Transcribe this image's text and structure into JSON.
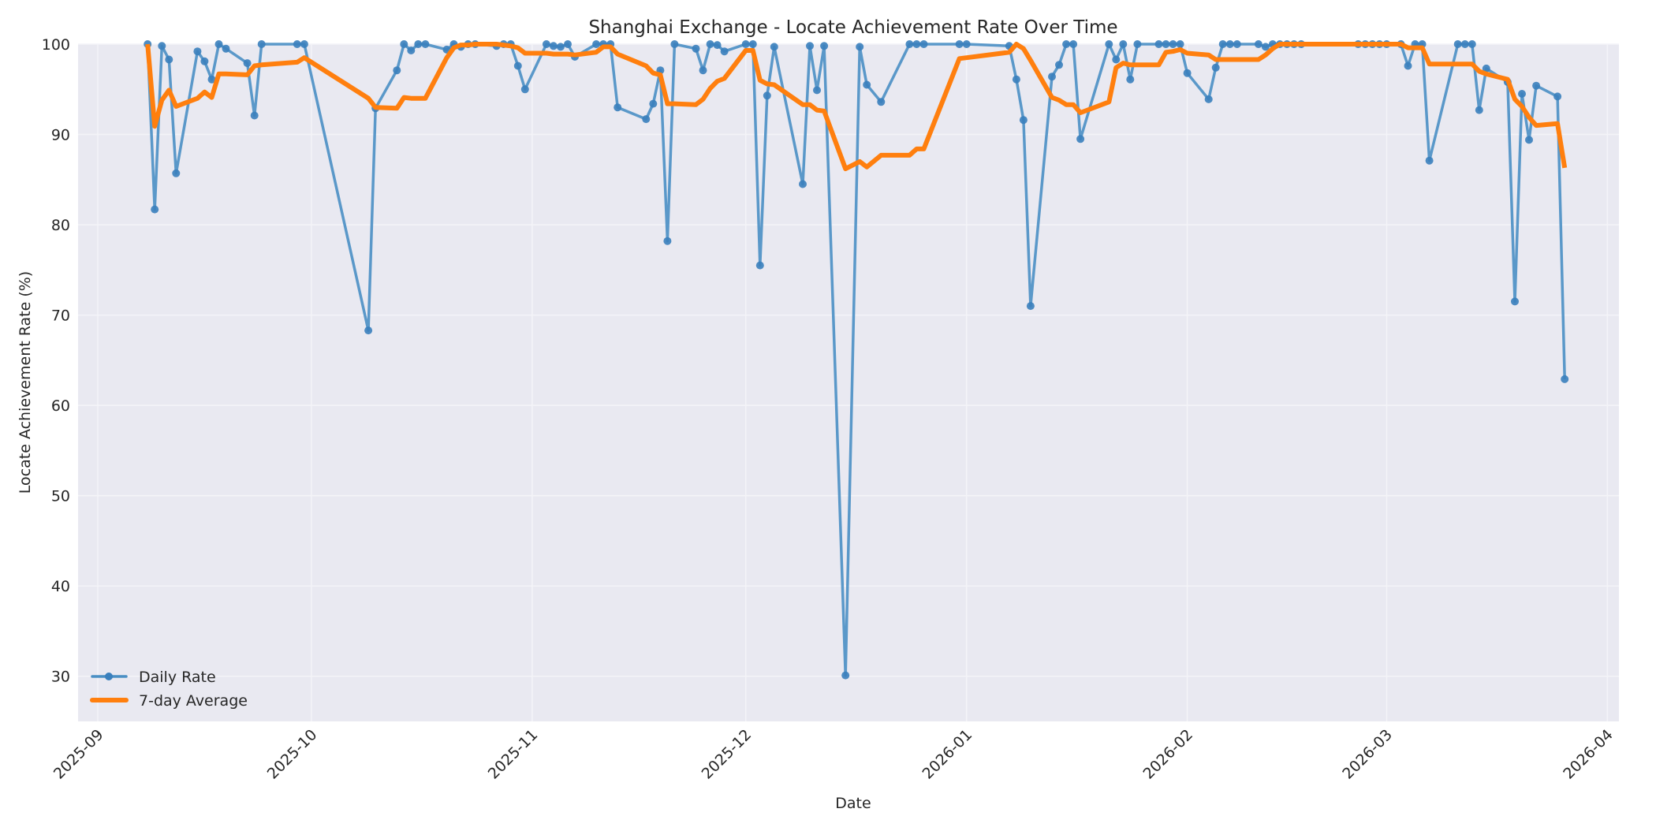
{
  "chart_data": {
    "type": "line",
    "title": "Shanghai Exchange - Locate Achievement Rate Over Time",
    "xlabel": "Date",
    "ylabel": "Locate Achievement Rate (%)",
    "ylim": [
      25,
      100
    ],
    "xlim": [
      "2025-08-29",
      "2026-04-02"
    ],
    "grid": true,
    "legend_position": "lower left",
    "yticks": [
      30,
      40,
      50,
      60,
      70,
      80,
      90,
      100
    ],
    "xticks": [
      "2025-09",
      "2025-10",
      "2025-11",
      "2025-12",
      "2026-01",
      "2026-02",
      "2026-03",
      "2026-04"
    ],
    "xtick_dates": [
      "2025-09-01",
      "2025-10-01",
      "2025-11-01",
      "2025-12-01",
      "2026-01-01",
      "2026-02-01",
      "2026-03-01",
      "2026-04-01"
    ],
    "series": [
      {
        "name": "Daily Rate",
        "color": "#4a8fc4",
        "marker": "circle",
        "points": [
          [
            "2025-09-08",
            100
          ],
          [
            "2025-09-09",
            81.7
          ],
          [
            "2025-09-10",
            99.8
          ],
          [
            "2025-09-11",
            98.3
          ],
          [
            "2025-09-12",
            85.7
          ],
          [
            "2025-09-15",
            99.2
          ],
          [
            "2025-09-16",
            98.1
          ],
          [
            "2025-09-17",
            96.1
          ],
          [
            "2025-09-18",
            100
          ],
          [
            "2025-09-19",
            99.5
          ],
          [
            "2025-09-22",
            97.9
          ],
          [
            "2025-09-23",
            92.1
          ],
          [
            "2025-09-24",
            100
          ],
          [
            "2025-09-29",
            100
          ],
          [
            "2025-09-30",
            100
          ],
          [
            "2025-10-09",
            68.3
          ],
          [
            "2025-10-10",
            92.9
          ],
          [
            "2025-10-13",
            97.1
          ],
          [
            "2025-10-14",
            100
          ],
          [
            "2025-10-15",
            99.3
          ],
          [
            "2025-10-16",
            100
          ],
          [
            "2025-10-17",
            100
          ],
          [
            "2025-10-20",
            99.4
          ],
          [
            "2025-10-21",
            100
          ],
          [
            "2025-10-22",
            99.7
          ],
          [
            "2025-10-23",
            100
          ],
          [
            "2025-10-24",
            100
          ],
          [
            "2025-10-27",
            99.8
          ],
          [
            "2025-10-28",
            100
          ],
          [
            "2025-10-29",
            100
          ],
          [
            "2025-10-30",
            97.6
          ],
          [
            "2025-10-31",
            95.0
          ],
          [
            "2025-11-03",
            100
          ],
          [
            "2025-11-04",
            99.8
          ],
          [
            "2025-11-05",
            99.7
          ],
          [
            "2025-11-06",
            100
          ],
          [
            "2025-11-07",
            98.6
          ],
          [
            "2025-11-10",
            100
          ],
          [
            "2025-11-11",
            100
          ],
          [
            "2025-11-12",
            100
          ],
          [
            "2025-11-13",
            93.0
          ],
          [
            "2025-11-17",
            91.7
          ],
          [
            "2025-11-18",
            93.4
          ],
          [
            "2025-11-19",
            97.1
          ],
          [
            "2025-11-20",
            78.2
          ],
          [
            "2025-11-21",
            100
          ],
          [
            "2025-11-24",
            99.5
          ],
          [
            "2025-11-25",
            97.1
          ],
          [
            "2025-11-26",
            100
          ],
          [
            "2025-11-27",
            99.9
          ],
          [
            "2025-11-28",
            99.2
          ],
          [
            "2025-12-01",
            100
          ],
          [
            "2025-12-02",
            100
          ],
          [
            "2025-12-03",
            75.5
          ],
          [
            "2025-12-04",
            94.3
          ],
          [
            "2025-12-05",
            99.7
          ],
          [
            "2025-12-09",
            84.5
          ],
          [
            "2025-12-10",
            99.8
          ],
          [
            "2025-12-11",
            94.9
          ],
          [
            "2025-12-12",
            99.8
          ],
          [
            "2025-12-15",
            30.1
          ],
          [
            "2025-12-17",
            99.7
          ],
          [
            "2025-12-18",
            95.5
          ],
          [
            "2025-12-20",
            93.6
          ],
          [
            "2025-12-24",
            100
          ],
          [
            "2025-12-25",
            100
          ],
          [
            "2025-12-26",
            100
          ],
          [
            "2025-12-31",
            100
          ],
          [
            "2026-01-01",
            100
          ],
          [
            "2026-01-07",
            99.8
          ],
          [
            "2026-01-08",
            96.1
          ],
          [
            "2026-01-09",
            91.6
          ],
          [
            "2026-01-10",
            71.0
          ],
          [
            "2026-01-13",
            96.4
          ],
          [
            "2026-01-14",
            97.7
          ],
          [
            "2026-01-15",
            100
          ],
          [
            "2026-01-16",
            100
          ],
          [
            "2026-01-17",
            89.5
          ],
          [
            "2026-01-21",
            100
          ],
          [
            "2026-01-22",
            98.3
          ],
          [
            "2026-01-23",
            100
          ],
          [
            "2026-01-24",
            96.1
          ],
          [
            "2026-01-25",
            100
          ],
          [
            "2026-01-28",
            100
          ],
          [
            "2026-01-29",
            100
          ],
          [
            "2026-01-30",
            100
          ],
          [
            "2026-01-31",
            100
          ],
          [
            "2026-02-01",
            96.8
          ],
          [
            "2026-02-04",
            93.9
          ],
          [
            "2026-02-05",
            97.4
          ],
          [
            "2026-02-06",
            100
          ],
          [
            "2026-02-07",
            100
          ],
          [
            "2026-02-08",
            100
          ],
          [
            "2026-02-11",
            100
          ],
          [
            "2026-02-12",
            99.7
          ],
          [
            "2026-02-13",
            100
          ],
          [
            "2026-02-14",
            100
          ],
          [
            "2026-02-15",
            100
          ],
          [
            "2026-02-16",
            100
          ],
          [
            "2026-02-17",
            100
          ],
          [
            "2026-02-25",
            100
          ],
          [
            "2026-02-26",
            100
          ],
          [
            "2026-02-27",
            100
          ],
          [
            "2026-02-28",
            100
          ],
          [
            "2026-03-01",
            100
          ],
          [
            "2026-03-03",
            100
          ],
          [
            "2026-03-04",
            97.6
          ],
          [
            "2026-03-05",
            100
          ],
          [
            "2026-03-06",
            100
          ],
          [
            "2026-03-07",
            87.1
          ],
          [
            "2026-03-11",
            100
          ],
          [
            "2026-03-12",
            100
          ],
          [
            "2026-03-13",
            100
          ],
          [
            "2026-03-14",
            92.7
          ],
          [
            "2026-03-15",
            97.3
          ],
          [
            "2026-03-18",
            95.8
          ],
          [
            "2026-03-19",
            71.5
          ],
          [
            "2026-03-20",
            94.5
          ],
          [
            "2026-03-21",
            89.4
          ],
          [
            "2026-03-22",
            95.4
          ],
          [
            "2026-03-25",
            94.2
          ],
          [
            "2026-03-26",
            62.9
          ]
        ]
      },
      {
        "name": "7-day Average",
        "color": "#ff7f0e",
        "marker": "none",
        "points": [
          [
            "2025-09-08",
            100
          ],
          [
            "2025-09-09",
            90.9
          ],
          [
            "2025-09-10",
            93.8
          ],
          [
            "2025-09-11",
            94.9
          ],
          [
            "2025-09-12",
            93.1
          ],
          [
            "2025-09-15",
            94.0
          ],
          [
            "2025-09-16",
            94.7
          ],
          [
            "2025-09-17",
            94.1
          ],
          [
            "2025-09-18",
            96.7
          ],
          [
            "2025-09-19",
            96.7
          ],
          [
            "2025-09-22",
            96.6
          ],
          [
            "2025-09-23",
            97.6
          ],
          [
            "2025-09-24",
            97.7
          ],
          [
            "2025-09-29",
            98.0
          ],
          [
            "2025-09-30",
            98.5
          ],
          [
            "2025-10-09",
            94.0
          ],
          [
            "2025-10-10",
            93.0
          ],
          [
            "2025-10-13",
            92.9
          ],
          [
            "2025-10-14",
            94.1
          ],
          [
            "2025-10-15",
            94.0
          ],
          [
            "2025-10-16",
            94.0
          ],
          [
            "2025-10-17",
            94.0
          ],
          [
            "2025-10-20",
            98.5
          ],
          [
            "2025-10-21",
            99.6
          ],
          [
            "2025-10-22",
            99.9
          ],
          [
            "2025-10-23",
            99.9
          ],
          [
            "2025-10-24",
            100
          ],
          [
            "2025-10-27",
            100
          ],
          [
            "2025-10-28",
            99.9
          ],
          [
            "2025-10-29",
            99.8
          ],
          [
            "2025-10-30",
            99.6
          ],
          [
            "2025-10-31",
            99.0
          ],
          [
            "2025-11-03",
            99.0
          ],
          [
            "2025-11-04",
            98.9
          ],
          [
            "2025-11-05",
            98.9
          ],
          [
            "2025-11-06",
            98.9
          ],
          [
            "2025-11-07",
            98.8
          ],
          [
            "2025-11-10",
            99.1
          ],
          [
            "2025-11-11",
            99.7
          ],
          [
            "2025-11-12",
            99.7
          ],
          [
            "2025-11-13",
            98.9
          ],
          [
            "2025-11-17",
            97.6
          ],
          [
            "2025-11-18",
            96.8
          ],
          [
            "2025-11-19",
            96.6
          ],
          [
            "2025-11-20",
            93.4
          ],
          [
            "2025-11-21",
            93.4
          ],
          [
            "2025-11-24",
            93.3
          ],
          [
            "2025-11-25",
            93.9
          ],
          [
            "2025-11-26",
            95.1
          ],
          [
            "2025-11-27",
            95.9
          ],
          [
            "2025-11-28",
            96.2
          ],
          [
            "2025-12-01",
            99.3
          ],
          [
            "2025-12-02",
            99.3
          ],
          [
            "2025-12-03",
            96.0
          ],
          [
            "2025-12-04",
            95.6
          ],
          [
            "2025-12-05",
            95.5
          ],
          [
            "2025-12-09",
            93.3
          ],
          [
            "2025-12-10",
            93.3
          ],
          [
            "2025-12-11",
            92.7
          ],
          [
            "2025-12-12",
            92.6
          ],
          [
            "2025-12-15",
            86.2
          ],
          [
            "2025-12-17",
            87.0
          ],
          [
            "2025-12-18",
            86.4
          ],
          [
            "2025-12-20",
            87.7
          ],
          [
            "2025-12-24",
            87.7
          ],
          [
            "2025-12-25",
            88.4
          ],
          [
            "2025-12-26",
            88.4
          ],
          [
            "2025-12-31",
            98.4
          ],
          [
            "2026-01-01",
            98.5
          ],
          [
            "2026-01-07",
            99.1
          ],
          [
            "2026-01-08",
            100
          ],
          [
            "2026-01-09",
            99.5
          ],
          [
            "2026-01-10",
            98.2
          ],
          [
            "2026-01-13",
            94.1
          ],
          [
            "2026-01-14",
            93.8
          ],
          [
            "2026-01-15",
            93.3
          ],
          [
            "2026-01-16",
            93.3
          ],
          [
            "2026-01-17",
            92.4
          ],
          [
            "2026-01-21",
            93.6
          ],
          [
            "2026-01-22",
            97.4
          ],
          [
            "2026-01-23",
            97.9
          ],
          [
            "2026-01-24",
            97.7
          ],
          [
            "2026-01-25",
            97.7
          ],
          [
            "2026-01-28",
            97.7
          ],
          [
            "2026-01-29",
            99.1
          ],
          [
            "2026-01-30",
            99.2
          ],
          [
            "2026-01-31",
            99.4
          ],
          [
            "2026-02-01",
            99.0
          ],
          [
            "2026-02-04",
            98.8
          ],
          [
            "2026-02-05",
            98.3
          ],
          [
            "2026-02-06",
            98.3
          ],
          [
            "2026-02-07",
            98.3
          ],
          [
            "2026-02-08",
            98.3
          ],
          [
            "2026-02-11",
            98.3
          ],
          [
            "2026-02-12",
            98.8
          ],
          [
            "2026-02-13",
            99.5
          ],
          [
            "2026-02-14",
            100
          ],
          [
            "2026-02-15",
            100
          ],
          [
            "2026-02-16",
            100
          ],
          [
            "2026-02-17",
            100
          ],
          [
            "2026-02-25",
            100
          ],
          [
            "2026-02-26",
            100
          ],
          [
            "2026-02-27",
            100
          ],
          [
            "2026-02-28",
            100
          ],
          [
            "2026-03-01",
            100
          ],
          [
            "2026-03-03",
            100
          ],
          [
            "2026-03-04",
            99.6
          ],
          [
            "2026-03-05",
            99.6
          ],
          [
            "2026-03-06",
            99.6
          ],
          [
            "2026-03-07",
            97.8
          ],
          [
            "2026-03-11",
            97.8
          ],
          [
            "2026-03-12",
            97.8
          ],
          [
            "2026-03-13",
            97.8
          ],
          [
            "2026-03-14",
            97.0
          ],
          [
            "2026-03-15",
            96.7
          ],
          [
            "2026-03-18",
            96.1
          ],
          [
            "2026-03-19",
            93.9
          ],
          [
            "2026-03-20",
            93.1
          ],
          [
            "2026-03-21",
            91.9
          ],
          [
            "2026-03-22",
            91.0
          ],
          [
            "2026-03-25",
            91.2
          ],
          [
            "2026-03-26",
            86.3
          ]
        ]
      }
    ]
  },
  "style": {
    "plot_background": "#e9e9f1",
    "grid_color": "#f4f4f8",
    "daily_color": "#4a8fc4",
    "average_color": "#ff7f0e"
  }
}
